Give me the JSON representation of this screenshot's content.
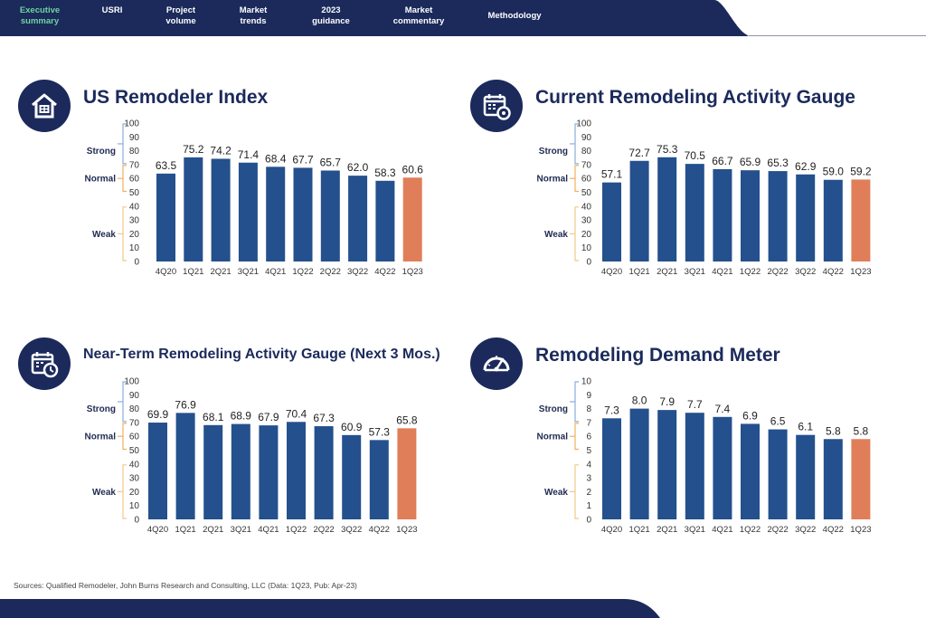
{
  "nav": {
    "items": [
      {
        "label": "Executive\nsummary",
        "active": true
      },
      {
        "label": "USRI",
        "active": false
      },
      {
        "label": "Project\nvolume",
        "active": false
      },
      {
        "label": "Market\ntrends",
        "active": false
      },
      {
        "label": "2023\nguidance",
        "active": false
      },
      {
        "label": "Market\ncommentary",
        "active": false
      },
      {
        "label": "Methodology",
        "active": false
      }
    ]
  },
  "colors": {
    "navy": "#1b2a5b",
    "bar": "#24508d",
    "highlight": "#e07e59",
    "strong_bracket": "#8aaedc",
    "normal_bracket": "#f1b15c",
    "weak_bracket": "#f3c88a",
    "nav_active": "#6fd3a0"
  },
  "source": "Sources: Qualified Remodeler, John Burns Research and Consulting, LLC (Data: 1Q23, Pub: Apr-23)",
  "chart_data": [
    {
      "type": "bar",
      "title": "US Remodeler Index",
      "icon": "house-icon",
      "categories": [
        "4Q20",
        "1Q21",
        "2Q21",
        "3Q21",
        "4Q21",
        "1Q22",
        "2Q22",
        "3Q22",
        "4Q22",
        "1Q23"
      ],
      "values": [
        63.5,
        75.2,
        74.2,
        71.4,
        68.4,
        67.7,
        65.7,
        62.0,
        58.3,
        60.6
      ],
      "value_labels": [
        "63.5",
        "75.2",
        "74.2",
        "71.4",
        "68.4",
        "67.7",
        "65.7",
        "62.0",
        "58.3",
        "60.6"
      ],
      "ylim": [
        0,
        100
      ],
      "yticks": [
        "0",
        "10",
        "20",
        "30",
        "40",
        "50",
        "60",
        "70",
        "80",
        "90",
        "100"
      ],
      "bands": [
        "Strong",
        "Normal",
        "Weak"
      ],
      "highlight_last": true
    },
    {
      "type": "bar",
      "title": "Current Remodeling Activity Gauge",
      "icon": "calendar-gear-icon",
      "categories": [
        "4Q20",
        "1Q21",
        "2Q21",
        "3Q21",
        "4Q21",
        "1Q22",
        "2Q22",
        "3Q22",
        "4Q22",
        "1Q23"
      ],
      "values": [
        57.1,
        72.7,
        75.3,
        70.5,
        66.7,
        65.9,
        65.3,
        62.9,
        59.0,
        59.2
      ],
      "value_labels": [
        "57.1",
        "72.7",
        "75.3",
        "70.5",
        "66.7",
        "65.9",
        "65.3",
        "62.9",
        "59.0",
        "59.2"
      ],
      "ylim": [
        0,
        100
      ],
      "yticks": [
        "0",
        "10",
        "20",
        "30",
        "40",
        "50",
        "60",
        "70",
        "80",
        "90",
        "100"
      ],
      "bands": [
        "Strong",
        "Normal",
        "Weak"
      ],
      "highlight_last": true
    },
    {
      "type": "bar",
      "title": "Near-Term Remodeling Activity Gauge (Next 3 Mos.)",
      "icon": "calendar-clock-icon",
      "categories": [
        "4Q20",
        "1Q21",
        "2Q21",
        "3Q21",
        "4Q21",
        "1Q22",
        "2Q22",
        "3Q22",
        "4Q22",
        "1Q23"
      ],
      "values": [
        69.9,
        76.9,
        68.1,
        68.9,
        67.9,
        70.4,
        67.3,
        60.9,
        57.3,
        65.8
      ],
      "value_labels": [
        "69.9",
        "76.9",
        "68.1",
        "68.9",
        "67.9",
        "70.4",
        "67.3",
        "60.9",
        "57.3",
        "65.8"
      ],
      "ylim": [
        0,
        100
      ],
      "yticks": [
        "0",
        "10",
        "20",
        "30",
        "40",
        "50",
        "60",
        "70",
        "80",
        "90",
        "100"
      ],
      "bands": [
        "Strong",
        "Normal",
        "Weak"
      ],
      "highlight_last": true
    },
    {
      "type": "bar",
      "title": "Remodeling Demand Meter",
      "icon": "speedometer-icon",
      "categories": [
        "4Q20",
        "1Q21",
        "2Q21",
        "3Q21",
        "4Q21",
        "1Q22",
        "2Q22",
        "3Q22",
        "4Q22",
        "1Q23"
      ],
      "values": [
        7.3,
        8.0,
        7.9,
        7.7,
        7.4,
        6.9,
        6.5,
        6.1,
        5.8,
        5.8
      ],
      "value_labels": [
        "7.3",
        "8.0",
        "7.9",
        "7.7",
        "7.4",
        "6.9",
        "6.5",
        "6.1",
        "5.8",
        "5.8"
      ],
      "ylim": [
        0,
        10
      ],
      "yticks": [
        "0",
        "1",
        "2",
        "3",
        "4",
        "5",
        "6",
        "7",
        "8",
        "9",
        "10"
      ],
      "bands": [
        "Strong",
        "Normal",
        "Weak"
      ],
      "highlight_last": true
    }
  ]
}
